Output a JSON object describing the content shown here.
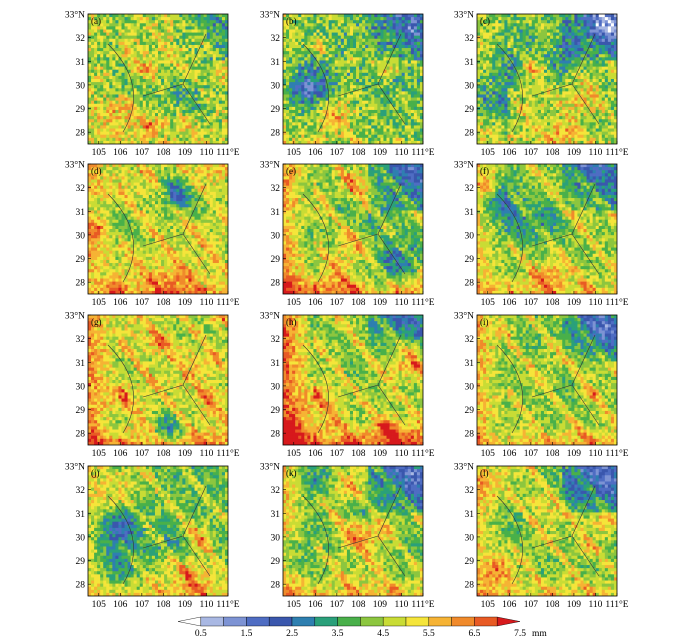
{
  "chart_data": {
    "type": "heatmap",
    "panels": [
      "(a)",
      "(b)",
      "(c)",
      "(d)",
      "(e)",
      "(f)",
      "(g)",
      "(h)",
      "(i)",
      "(j)",
      "(k)",
      "(l)"
    ],
    "x_ticks": [
      "105",
      "106",
      "107",
      "108",
      "109",
      "110",
      "111°E"
    ],
    "y_ticks": [
      "33°N",
      "32",
      "31",
      "30",
      "29",
      "28"
    ],
    "x_range": [
      104.5,
      111
    ],
    "y_range": [
      27.5,
      33
    ],
    "colorbar": {
      "levels": [
        "0.5",
        "1.5",
        "2.5",
        "3.5",
        "4.5",
        "5.5",
        "6.5",
        "7.5"
      ],
      "unit": "mm",
      "colors": [
        "#ffffff",
        "#a9b8e3",
        "#7d93d4",
        "#4f6dc3",
        "#3a57ad",
        "#2e7fb0",
        "#2aa07a",
        "#49b04a",
        "#8cc63f",
        "#c9dc35",
        "#f5e53a",
        "#f6b334",
        "#f08a2b",
        "#e85a24",
        "#d7191c"
      ]
    }
  }
}
